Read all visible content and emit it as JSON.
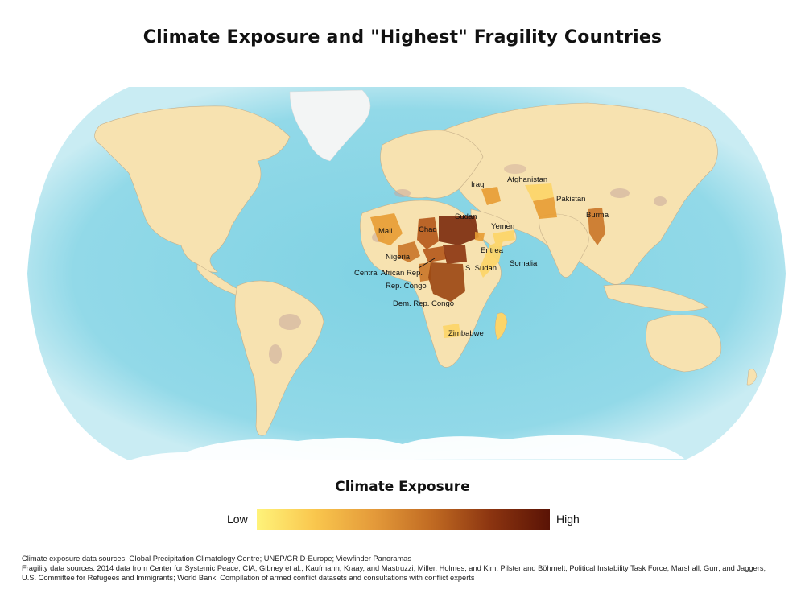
{
  "title": "Climate Exposure and \"Highest\" Fragility Countries",
  "map": {
    "projection": "robinson",
    "colors": {
      "ocean": "#8fd7e6",
      "ocean_edge": "#bde9f1",
      "land": "#f7e2b0",
      "land_dry": "#c9a79c",
      "border": "#c7b08a",
      "fragile_low": "#fcd56a",
      "fragile_mid": "#e79c33",
      "fragile_high": "#b4581a",
      "fragile_max": "#6b2108"
    },
    "countries": [
      {
        "name": "Afghanistan"
      },
      {
        "name": "Iraq"
      },
      {
        "name": "Pakistan"
      },
      {
        "name": "Sudan"
      },
      {
        "name": "Yemen"
      },
      {
        "name": "Burma"
      },
      {
        "name": "Mali"
      },
      {
        "name": "Chad"
      },
      {
        "name": "Eritrea"
      },
      {
        "name": "Nigeria"
      },
      {
        "name": "Central African Rep."
      },
      {
        "name": "S. Sudan"
      },
      {
        "name": "Somalia"
      },
      {
        "name": "Rep. Congo"
      },
      {
        "name": "Dem. Rep. Congo"
      },
      {
        "name": "Zimbabwe"
      }
    ]
  },
  "legend": {
    "title": "Climate Exposure",
    "low_label": "Low",
    "high_label": "High",
    "gradient": [
      "#fff37a",
      "#f9c64d",
      "#e49a3a",
      "#c06a22",
      "#8b3410",
      "#5a1305"
    ]
  },
  "sources": {
    "line1": "Climate exposure data sources: Global Precipitation Climatology Centre; UNEP/GRID-Europe; Viewfinder Panoramas",
    "line2": "Fragility data sources: 2014 data from Center for Systemic Peace; CIA; Gibney et al.; Kaufmann, Kraay, and Mastruzzi; Miller, Holmes, and Kim; Pilster and Böhmelt; Political Instability Task Force; Marshall, Gurr, and Jaggers;",
    "line3": "U.S. Committee for Refugees and Immigrants; World Bank; Compilation of armed conflict datasets and consultations with conflict experts"
  }
}
